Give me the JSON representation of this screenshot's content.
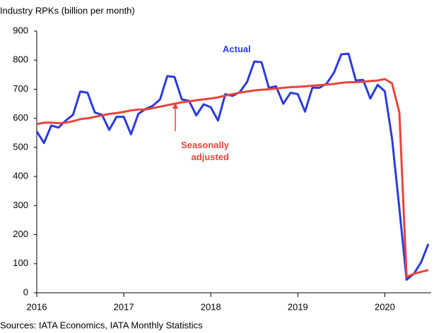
{
  "chart_data": {
    "type": "line",
    "y_axis_label": "Industry RPKs (billion per month)",
    "source": "Sources: IATA Economics, IATA Monthly Statistics",
    "x": [
      2016,
      2016.083,
      2016.167,
      2016.25,
      2016.333,
      2016.417,
      2016.5,
      2016.583,
      2016.667,
      2016.75,
      2016.833,
      2016.917,
      2017,
      2017.083,
      2017.167,
      2017.25,
      2017.333,
      2017.417,
      2017.5,
      2017.583,
      2017.667,
      2017.75,
      2017.833,
      2017.917,
      2018,
      2018.083,
      2018.167,
      2018.25,
      2018.333,
      2018.417,
      2018.5,
      2018.583,
      2018.667,
      2018.75,
      2018.833,
      2018.917,
      2019,
      2019.083,
      2019.167,
      2019.25,
      2019.333,
      2019.417,
      2019.5,
      2019.583,
      2019.667,
      2019.75,
      2019.833,
      2019.917,
      2020,
      2020.083,
      2020.167,
      2020.25,
      2020.333,
      2020.417,
      2020.5
    ],
    "series": [
      {
        "name": "Actual",
        "color": "#2b3be0",
        "values": [
          555,
          515,
          575,
          568,
          592,
          612,
          692,
          688,
          620,
          612,
          560,
          605,
          605,
          545,
          615,
          632,
          643,
          665,
          745,
          742,
          665,
          660,
          610,
          648,
          638,
          592,
          683,
          677,
          690,
          725,
          795,
          793,
          705,
          710,
          650,
          688,
          683,
          623,
          705,
          705,
          720,
          758,
          820,
          822,
          730,
          732,
          668,
          715,
          693,
          530,
          290,
          45,
          65,
          105,
          168
        ]
      },
      {
        "name": "Seasonally adjusted",
        "color": "#e8443a",
        "values": [
          580,
          585,
          585,
          583,
          585,
          590,
          597,
          600,
          605,
          610,
          615,
          618,
          622,
          627,
          630,
          630,
          635,
          640,
          645,
          650,
          655,
          658,
          662,
          665,
          668,
          672,
          678,
          683,
          688,
          692,
          696,
          698,
          700,
          702,
          705,
          707,
          708,
          710,
          712,
          714,
          716,
          718,
          722,
          724,
          724,
          726,
          728,
          730,
          735,
          720,
          620,
          55,
          65,
          72,
          78
        ]
      }
    ],
    "xlim": [
      2016,
      2020.5
    ],
    "xticks": [
      2016,
      2017,
      2018,
      2019,
      2020
    ],
    "ylim": [
      0,
      900
    ],
    "yticks": [
      0,
      100,
      200,
      300,
      400,
      500,
      600,
      700,
      800,
      900
    ],
    "grid": false
  }
}
